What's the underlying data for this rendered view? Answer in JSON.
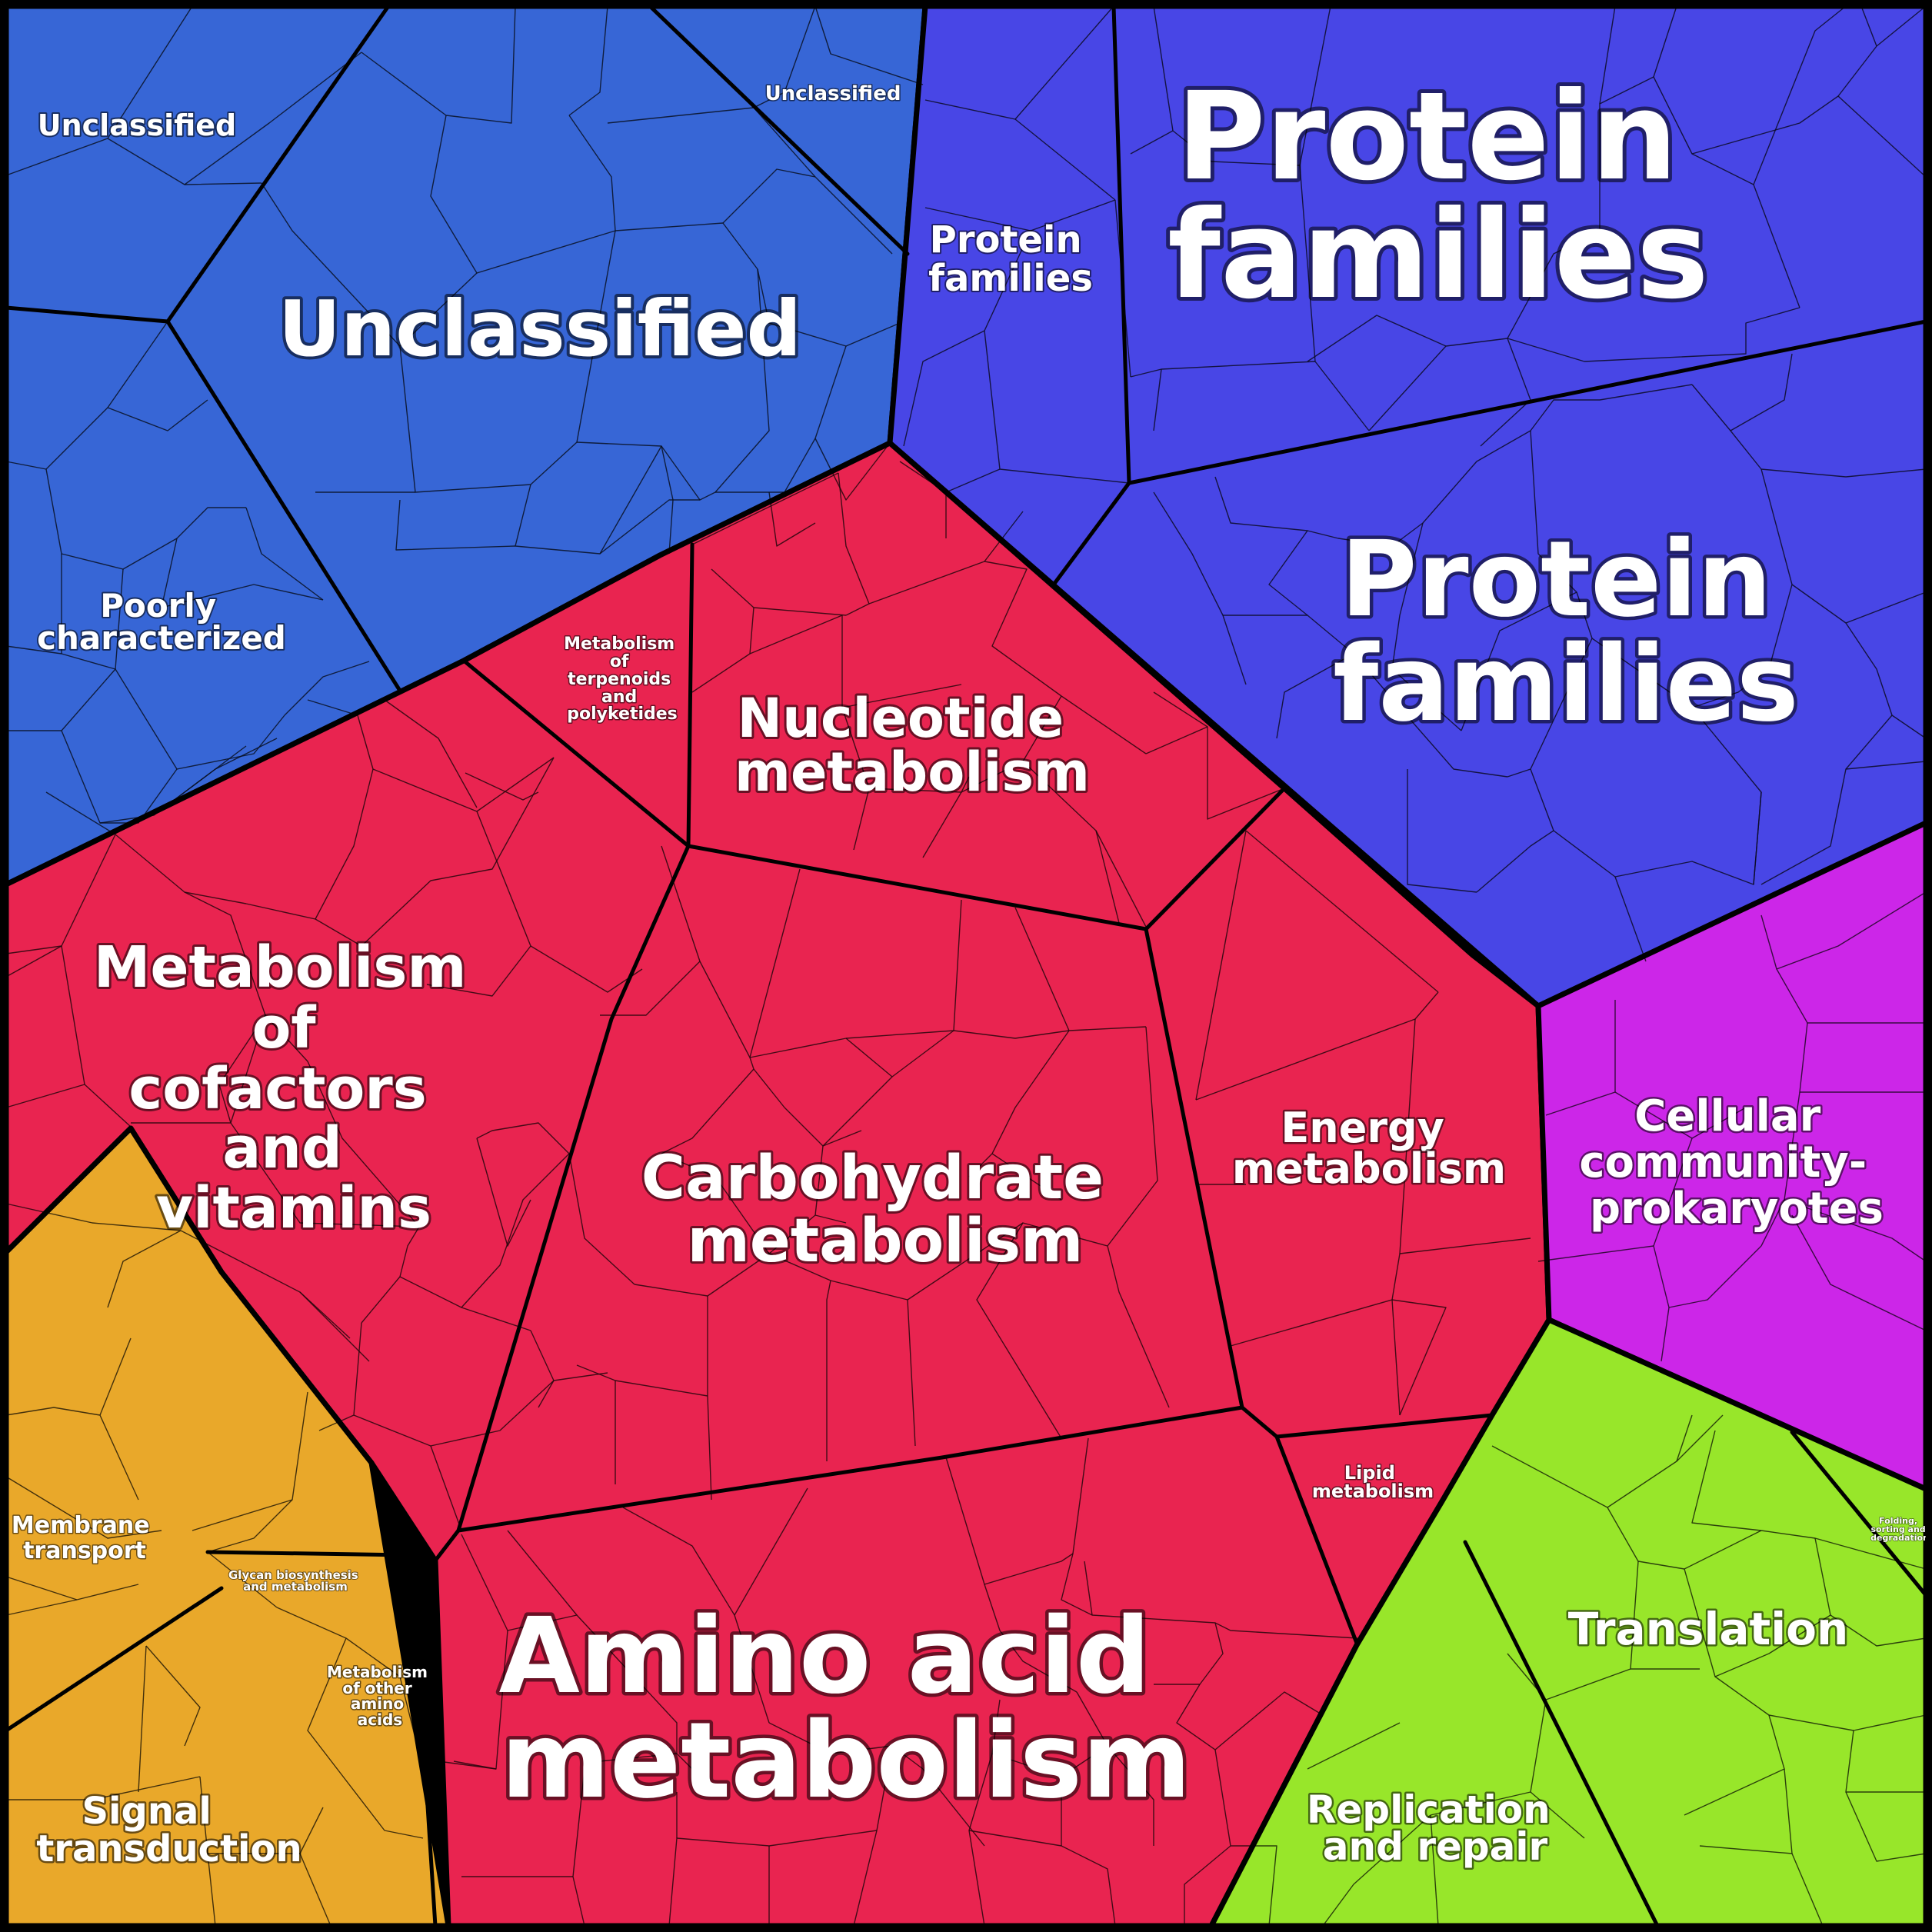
{
  "colors": {
    "unclassified": "#3766d6",
    "protein_families": "#4846e6",
    "metabolism": "#e92450",
    "cellular_processes": "#cc26e8",
    "genetic_information": "#98e62a",
    "environmental": "#e9a82a"
  },
  "labels": {
    "unclassified_small_1": "Unclassified",
    "unclassified_small_2": "Unclassified",
    "unclassified_large": "Unclassified",
    "poorly_characterized": [
      "Poorly",
      "characterized"
    ],
    "protein_families_small": [
      "Protein",
      "families"
    ],
    "protein_families_large_1": [
      "Protein",
      "families"
    ],
    "protein_families_large_2": [
      "Protein",
      "families"
    ],
    "metabolism_terpenoids": [
      "Metabolism",
      "of",
      "terpenoids",
      "and",
      "polyketides"
    ],
    "nucleotide_metabolism": [
      "Nucleotide",
      "metabolism"
    ],
    "cofactors_vitamins": [
      "Metabolism",
      "of",
      "cofactors",
      "and",
      "vitamins"
    ],
    "carbohydrate_metabolism": [
      "Carbohydrate",
      "metabolism"
    ],
    "energy_metabolism": [
      "Energy",
      "metabolism"
    ],
    "cellular_community": [
      "Cellular",
      "community-",
      "prokaryotes"
    ],
    "lipid_metabolism": [
      "Lipid",
      "metabolism"
    ],
    "glycan": [
      "Glycan biosynthesis",
      "and metabolism"
    ],
    "other_amino_acids": [
      "Metabolism",
      "of other",
      "amino",
      "acids"
    ],
    "amino_acid_metabolism": [
      "Amino acid",
      "metabolism"
    ],
    "membrane_transport": [
      "Membrane",
      "transport"
    ],
    "signal_transduction": [
      "Signal",
      "transduction"
    ],
    "translation": "Translation",
    "folding": [
      "Folding,",
      "sorting and",
      "degradation"
    ],
    "replication_repair": [
      "Replication",
      "and repair"
    ]
  }
}
